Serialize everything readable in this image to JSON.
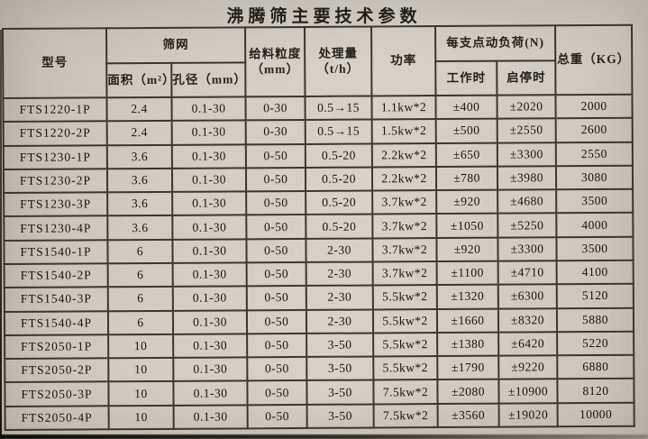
{
  "title": "沸腾筛主要技术参数",
  "colors": {
    "paper": "#d2ccc3",
    "grid_line": "#3a372f",
    "ink": "#17150f"
  },
  "table": {
    "headers": {
      "model": "型号",
      "screen_group": "筛网",
      "area": "面积（m²）",
      "aperture": "孔径（mm）",
      "feed_size_line1": "给料粒度",
      "feed_size_line2": "（mm）",
      "capacity_line1": "处理量",
      "capacity_line2": "（t/h）",
      "power": "功率",
      "load_group": "每支点动负荷(N)",
      "working": "工作时",
      "start_stop": "启停时",
      "total_weight": "总重（KG）"
    },
    "rows": [
      [
        "FTS1220-1P",
        "2.4",
        "0.1-30",
        "0-30",
        "0.5→15",
        "1.1kw*2",
        "±400",
        "±2020",
        "2000"
      ],
      [
        "FTS1220-2P",
        "2.4",
        "0.1-30",
        "0-30",
        "0.5→15",
        "1.5kw*2",
        "±500",
        "±2550",
        "2600"
      ],
      [
        "FTS1230-1P",
        "3.6",
        "0.1-30",
        "0-50",
        "0.5-20",
        "2.2kw*2",
        "±650",
        "±3300",
        "2550"
      ],
      [
        "FTS1230-2P",
        "3.6",
        "0.1-30",
        "0-50",
        "0.5-20",
        "2.2kw*2",
        "±780",
        "±3980",
        "3080"
      ],
      [
        "FTS1230-3P",
        "3.6",
        "0.1-30",
        "0-50",
        "0.5-20",
        "3.7kw*2",
        "±920",
        "±4680",
        "3500"
      ],
      [
        "FTS1230-4P",
        "3.6",
        "0.1-30",
        "0-50",
        "0.5-20",
        "3.7kw*2",
        "±1050",
        "±5250",
        "4000"
      ],
      [
        "FTS1540-1P",
        "6",
        "0.1-30",
        "0-50",
        "2-30",
        "3.7kw*2",
        "±920",
        "±3300",
        "3500"
      ],
      [
        "FTS1540-2P",
        "6",
        "0.1-30",
        "0-50",
        "2-30",
        "3.7kw*2",
        "±1100",
        "±4710",
        "4100"
      ],
      [
        "FTS1540-3P",
        "6",
        "0.1-30",
        "0-50",
        "2-30",
        "5.5kw*2",
        "±1320",
        "±6300",
        "5120"
      ],
      [
        "FTS1540-4P",
        "6",
        "0.1-30",
        "0-50",
        "2-30",
        "5.5kw*2",
        "±1660",
        "±8320",
        "5880"
      ],
      [
        "FTS2050-1P",
        "10",
        "0.1-30",
        "0-50",
        "3-50",
        "5.5kw*2",
        "±1380",
        "±6420",
        "5220"
      ],
      [
        "FTS2050-2P",
        "10",
        "0.1-30",
        "0-50",
        "3-50",
        "5.5kw*2",
        "±1790",
        "±9220",
        "6880"
      ],
      [
        "FTS2050-3P",
        "10",
        "0.1-30",
        "0-50",
        "3-50",
        "7.5kw*2",
        "±2080",
        "±10900",
        "8120"
      ],
      [
        "FTS2050-4P",
        "10",
        "0.1-30",
        "0-50",
        "3-50",
        "7.5kw*2",
        "±3560",
        "±19020",
        "10000"
      ]
    ]
  }
}
